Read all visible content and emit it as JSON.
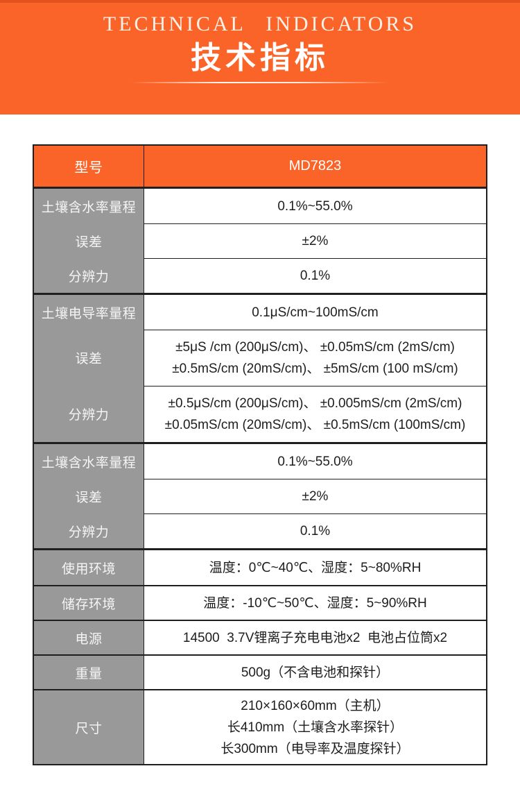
{
  "header": {
    "title_en": "TECHNICAL INDICATORS",
    "title_cn": "技术指标"
  },
  "colors": {
    "orange": "#fb6428",
    "orange_dark": "#e5511c",
    "label_gray": "#999999",
    "border_line": "#1f1f1f",
    "value_text": "#1d1d1d"
  },
  "table": {
    "header_row": {
      "label": "型号",
      "value": "MD7823"
    },
    "groups": [
      {
        "type": "group",
        "rows": [
          {
            "label": "土壤含水率量程",
            "lines": [
              "0.1%~55.0%"
            ]
          },
          {
            "label": "误差",
            "lines": [
              "±2%"
            ]
          },
          {
            "label": "分辨力",
            "lines": [
              "0.1%"
            ]
          }
        ]
      },
      {
        "type": "group",
        "rows": [
          {
            "label": "土壤电导率量程",
            "lines": [
              "0.1μS/cm~100mS/cm"
            ]
          },
          {
            "label": "误差",
            "lines": [
              "±5μS /cm (200μS/cm)、 ±0.05mS/cm (2mS/cm)",
              "±0.5mS/cm (20mS/cm)、 ±5mS/cm (100 mS/cm)"
            ]
          },
          {
            "label": "分辨力",
            "lines": [
              "±0.5μS/cm (200μS/cm)、 ±0.005mS/cm (2mS/cm)",
              "±0.05mS/cm (20mS/cm)、 ±0.5mS/cm (100mS/cm)"
            ]
          }
        ]
      },
      {
        "type": "group",
        "rows": [
          {
            "label": "土壤含水率量程",
            "lines": [
              "0.1%~55.0%"
            ]
          },
          {
            "label": "误差",
            "lines": [
              "±2%"
            ]
          },
          {
            "label": "分辨力",
            "lines": [
              "0.1%"
            ]
          }
        ]
      },
      {
        "type": "singles",
        "rows": [
          {
            "label": "使用环境",
            "lines": [
              "温度：0℃~40℃、湿度：5~80%RH"
            ]
          },
          {
            "label": "储存环境",
            "lines": [
              "温度：-10℃~50℃、湿度：5~90%RH"
            ]
          },
          {
            "label": "电源",
            "lines": [
              "14500  3.7V锂离子充电电池x2  电池占位筒x2"
            ]
          },
          {
            "label": "重量",
            "lines": [
              "500g（不含电池和探针）"
            ]
          },
          {
            "label": "尺寸",
            "lines": [
              "210×160×60mm（主机）",
              "长410mm（土壤含水率探针）",
              "长300mm（电导率及温度探针）"
            ]
          }
        ]
      }
    ]
  }
}
